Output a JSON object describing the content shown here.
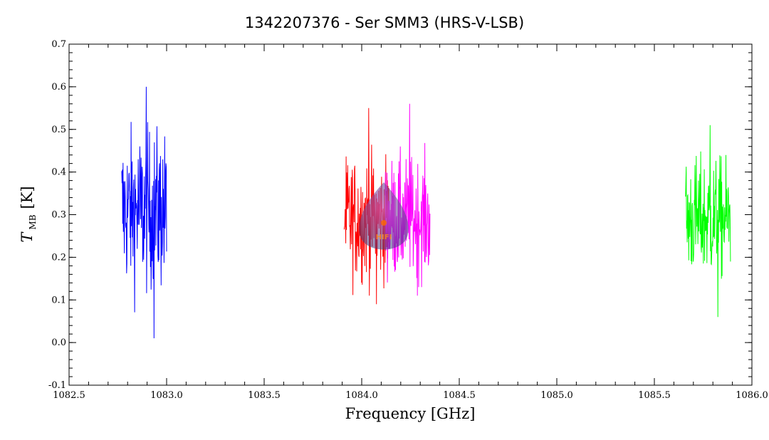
{
  "chart_data": {
    "type": "line",
    "title": "1342207376 - Ser SMM3 (HRS-V-LSB)",
    "xlabel": "Frequency [GHz]",
    "ylabel": {
      "main": "T",
      "sub": "MB",
      "unit": "[K]"
    },
    "xlim": [
      1082.5,
      1086.0
    ],
    "ylim": [
      -0.1,
      0.7
    ],
    "xticks": [
      1082.5,
      1083.0,
      1083.5,
      1084.0,
      1084.5,
      1085.0,
      1085.5,
      1086.0
    ],
    "xtick_labels": [
      "1082.5",
      "1083.0",
      "1083.5",
      "1084.0",
      "1084.5",
      "1085.0",
      "1085.5",
      "1086.0"
    ],
    "yticks": [
      -0.1,
      0.0,
      0.1,
      0.2,
      0.3,
      0.4,
      0.5,
      0.6,
      0.7
    ],
    "ytick_labels": [
      "-0.1",
      "0.0",
      "0.1",
      "0.2",
      "0.3",
      "0.4",
      "0.5",
      "0.6",
      "0.7"
    ],
    "grid": false,
    "series": [
      {
        "color": "#0000ff",
        "x_range": [
          1082.77,
          1083.0
        ],
        "mean": 0.31,
        "min": 0.01,
        "max": 0.6
      },
      {
        "color": "#ff0000",
        "x_range": [
          1083.91,
          1084.14
        ],
        "mean": 0.29,
        "min": 0.09,
        "max": 0.55
      },
      {
        "color": "#ff00ff",
        "x_range": [
          1084.12,
          1084.35
        ],
        "mean": 0.29,
        "min": 0.11,
        "max": 0.56
      },
      {
        "color": "#00ff00",
        "x_range": [
          1085.66,
          1085.89
        ],
        "mean": 0.29,
        "min": 0.06,
        "max": 0.51
      }
    ]
  },
  "logo": {
    "text": "HIFI"
  }
}
